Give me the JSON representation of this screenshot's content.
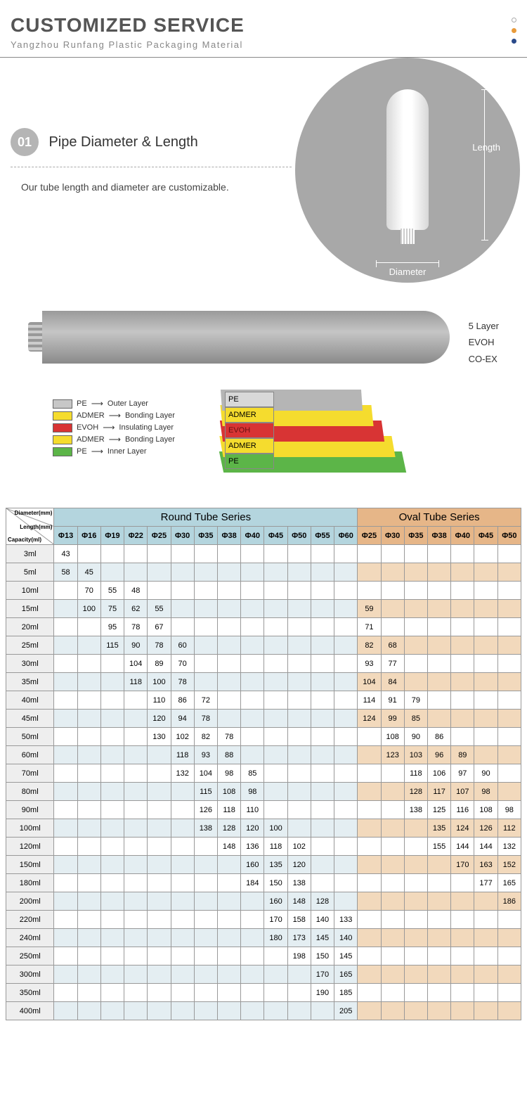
{
  "header": {
    "title": "CUSTOMIZED SERVICE",
    "subtitle": "Yangzhou Runfang Plastic Packaging Material"
  },
  "section1": {
    "badge": "01",
    "title": "Pipe Diameter & Length",
    "desc": "Our tube length and diameter are customizable.",
    "length_label": "Length",
    "diameter_label": "Diameter"
  },
  "layers": {
    "side_labels": [
      "5 Layer",
      "EVOH",
      "CO-EX"
    ],
    "legend": [
      {
        "color": "#c7c7c7",
        "name": "PE",
        "role": "Outer Layer"
      },
      {
        "color": "#f5dc2e",
        "name": "ADMER",
        "role": "Bonding Layer"
      },
      {
        "color": "#d83434",
        "name": "EVOH",
        "role": "Insulating Layer"
      },
      {
        "color": "#f5dc2e",
        "name": "ADMER",
        "role": "Bonding Layer"
      },
      {
        "color": "#5cb548",
        "name": "PE",
        "role": "Inner Layer"
      }
    ],
    "cutaway_labels": [
      "PE",
      "ADMER",
      "EVOH",
      "ADMER",
      "PE"
    ]
  },
  "table": {
    "corner_labels": [
      "Diameter(mm)",
      "Length(mm)",
      "Capacity(ml)"
    ],
    "round_header": "Round Tube Series",
    "oval_header": "Oval Tube Series",
    "round_cols": [
      "Φ13",
      "Φ16",
      "Φ19",
      "Φ22",
      "Φ25",
      "Φ30",
      "Φ35",
      "Φ38",
      "Φ40",
      "Φ45",
      "Φ50",
      "Φ55",
      "Φ60"
    ],
    "oval_cols": [
      "Φ25",
      "Φ30",
      "Φ35",
      "Φ38",
      "Φ40",
      "Φ45",
      "Φ50"
    ],
    "rows": [
      {
        "cap": "3ml",
        "r": [
          "43",
          "",
          "",
          "",
          "",
          "",
          "",
          "",
          "",
          "",
          "",
          "",
          ""
        ],
        "o": [
          "",
          "",
          "",
          "",
          "",
          "",
          ""
        ]
      },
      {
        "cap": "5ml",
        "r": [
          "58",
          "45",
          "",
          "",
          "",
          "",
          "",
          "",
          "",
          "",
          "",
          "",
          ""
        ],
        "o": [
          "",
          "",
          "",
          "",
          "",
          "",
          ""
        ]
      },
      {
        "cap": "10ml",
        "r": [
          "",
          "70",
          "55",
          "48",
          "",
          "",
          "",
          "",
          "",
          "",
          "",
          "",
          ""
        ],
        "o": [
          "",
          "",
          "",
          "",
          "",
          "",
          ""
        ]
      },
      {
        "cap": "15ml",
        "r": [
          "",
          "100",
          "75",
          "62",
          "55",
          "",
          "",
          "",
          "",
          "",
          "",
          "",
          ""
        ],
        "o": [
          "59",
          "",
          "",
          "",
          "",
          "",
          ""
        ]
      },
      {
        "cap": "20ml",
        "r": [
          "",
          "",
          "95",
          "78",
          "67",
          "",
          "",
          "",
          "",
          "",
          "",
          "",
          ""
        ],
        "o": [
          "71",
          "",
          "",
          "",
          "",
          "",
          ""
        ]
      },
      {
        "cap": "25ml",
        "r": [
          "",
          "",
          "115",
          "90",
          "78",
          "60",
          "",
          "",
          "",
          "",
          "",
          "",
          ""
        ],
        "o": [
          "82",
          "68",
          "",
          "",
          "",
          "",
          ""
        ]
      },
      {
        "cap": "30ml",
        "r": [
          "",
          "",
          "",
          "104",
          "89",
          "70",
          "",
          "",
          "",
          "",
          "",
          "",
          ""
        ],
        "o": [
          "93",
          "77",
          "",
          "",
          "",
          "",
          ""
        ]
      },
      {
        "cap": "35ml",
        "r": [
          "",
          "",
          "",
          "118",
          "100",
          "78",
          "",
          "",
          "",
          "",
          "",
          "",
          ""
        ],
        "o": [
          "104",
          "84",
          "",
          "",
          "",
          "",
          ""
        ]
      },
      {
        "cap": "40ml",
        "r": [
          "",
          "",
          "",
          "",
          "110",
          "86",
          "72",
          "",
          "",
          "",
          "",
          "",
          ""
        ],
        "o": [
          "114",
          "91",
          "79",
          "",
          "",
          "",
          ""
        ]
      },
      {
        "cap": "45ml",
        "r": [
          "",
          "",
          "",
          "",
          "120",
          "94",
          "78",
          "",
          "",
          "",
          "",
          "",
          ""
        ],
        "o": [
          "124",
          "99",
          "85",
          "",
          "",
          "",
          ""
        ]
      },
      {
        "cap": "50ml",
        "r": [
          "",
          "",
          "",
          "",
          "130",
          "102",
          "82",
          "78",
          "",
          "",
          "",
          "",
          ""
        ],
        "o": [
          "",
          "108",
          "90",
          "86",
          "",
          "",
          ""
        ]
      },
      {
        "cap": "60ml",
        "r": [
          "",
          "",
          "",
          "",
          "",
          "118",
          "93",
          "88",
          "",
          "",
          "",
          "",
          ""
        ],
        "o": [
          "",
          "123",
          "103",
          "96",
          "89",
          "",
          ""
        ]
      },
      {
        "cap": "70ml",
        "r": [
          "",
          "",
          "",
          "",
          "",
          "132",
          "104",
          "98",
          "85",
          "",
          "",
          "",
          ""
        ],
        "o": [
          "",
          "",
          "118",
          "106",
          "97",
          "90",
          ""
        ]
      },
      {
        "cap": "80ml",
        "r": [
          "",
          "",
          "",
          "",
          "",
          "",
          "115",
          "108",
          "98",
          "",
          "",
          "",
          ""
        ],
        "o": [
          "",
          "",
          "128",
          "117",
          "107",
          "98",
          ""
        ]
      },
      {
        "cap": "90ml",
        "r": [
          "",
          "",
          "",
          "",
          "",
          "",
          "126",
          "118",
          "110",
          "",
          "",
          "",
          ""
        ],
        "o": [
          "",
          "",
          "138",
          "125",
          "116",
          "108",
          "98"
        ]
      },
      {
        "cap": "100ml",
        "r": [
          "",
          "",
          "",
          "",
          "",
          "",
          "138",
          "128",
          "120",
          "100",
          "",
          "",
          ""
        ],
        "o": [
          "",
          "",
          "",
          "135",
          "124",
          "126",
          "112"
        ]
      },
      {
        "cap": "120ml",
        "r": [
          "",
          "",
          "",
          "",
          "",
          "",
          "",
          "148",
          "136",
          "118",
          "102",
          "",
          ""
        ],
        "o": [
          "",
          "",
          "",
          "155",
          "144",
          "144",
          "132"
        ]
      },
      {
        "cap": "150ml",
        "r": [
          "",
          "",
          "",
          "",
          "",
          "",
          "",
          "",
          "160",
          "135",
          "120",
          "",
          ""
        ],
        "o": [
          "",
          "",
          "",
          "",
          "170",
          "163",
          "152"
        ]
      },
      {
        "cap": "180ml",
        "r": [
          "",
          "",
          "",
          "",
          "",
          "",
          "",
          "",
          "184",
          "150",
          "138",
          "",
          ""
        ],
        "o": [
          "",
          "",
          "",
          "",
          "",
          "177",
          "165"
        ]
      },
      {
        "cap": "200ml",
        "r": [
          "",
          "",
          "",
          "",
          "",
          "",
          "",
          "",
          "",
          "160",
          "148",
          "128",
          ""
        ],
        "o": [
          "",
          "",
          "",
          "",
          "",
          "",
          "186"
        ]
      },
      {
        "cap": "220ml",
        "r": [
          "",
          "",
          "",
          "",
          "",
          "",
          "",
          "",
          "",
          "170",
          "158",
          "140",
          "133"
        ],
        "o": [
          "",
          "",
          "",
          "",
          "",
          "",
          ""
        ]
      },
      {
        "cap": "240ml",
        "r": [
          "",
          "",
          "",
          "",
          "",
          "",
          "",
          "",
          "",
          "180",
          "173",
          "145",
          "140"
        ],
        "o": [
          "",
          "",
          "",
          "",
          "",
          "",
          ""
        ]
      },
      {
        "cap": "250ml",
        "r": [
          "",
          "",
          "",
          "",
          "",
          "",
          "",
          "",
          "",
          "",
          "198",
          "150",
          "145"
        ],
        "o": [
          "",
          "",
          "",
          "",
          "",
          "",
          ""
        ]
      },
      {
        "cap": "300ml",
        "r": [
          "",
          "",
          "",
          "",
          "",
          "",
          "",
          "",
          "",
          "",
          "",
          "170",
          "165"
        ],
        "o": [
          "",
          "",
          "",
          "",
          "",
          "",
          ""
        ]
      },
      {
        "cap": "350ml",
        "r": [
          "",
          "",
          "",
          "",
          "",
          "",
          "",
          "",
          "",
          "",
          "",
          "190",
          "185"
        ],
        "o": [
          "",
          "",
          "",
          "",
          "",
          "",
          ""
        ]
      },
      {
        "cap": "400ml",
        "r": [
          "",
          "",
          "",
          "",
          "",
          "",
          "",
          "",
          "",
          "",
          "",
          "",
          "205"
        ],
        "o": [
          "",
          "",
          "",
          "",
          "",
          "",
          ""
        ]
      }
    ],
    "colors": {
      "round_header_bg": "#b4d5de",
      "oval_header_bg": "#e6b688",
      "round_row_alt": "#e4eef2",
      "oval_row_alt": "#f2d9bc",
      "border": "#999999"
    }
  }
}
